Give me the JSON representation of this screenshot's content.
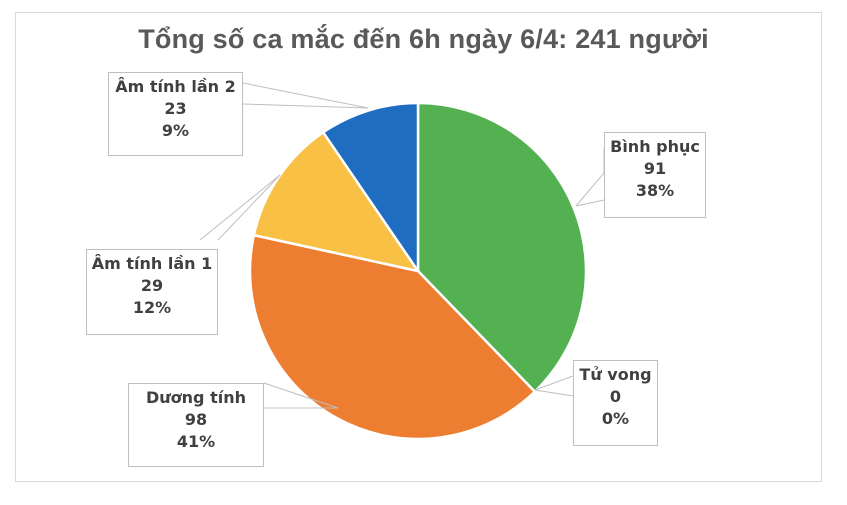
{
  "chart_data": {
    "type": "pie",
    "title": "Tổng số ca mắc đến 6h ngày 6/4: 241 người",
    "total": 241,
    "start_angle_deg": 0,
    "direction": "clockwise",
    "categories": [
      "Bình phục",
      "Tử vong",
      "Dương tính",
      "Âm tính lần 1",
      "Âm tính lần 2"
    ],
    "values": [
      91,
      0,
      98,
      29,
      23
    ],
    "percentages": [
      "38%",
      "0%",
      "41%",
      "12%",
      "9%"
    ],
    "colors": [
      "#53B152",
      "#4472C4",
      "#ED7D31",
      "#F8C045",
      "#1F6DC0"
    ],
    "data_labels_show": [
      "category",
      "value",
      "percent"
    ],
    "legend": "none"
  },
  "title": "Tổng số ca mắc đến 6h ngày 6/4: 241 người",
  "labels": {
    "binh_phuc": {
      "name": "Bình phục",
      "value": "91",
      "pct": "38%"
    },
    "tu_vong": {
      "name": "Tử vong",
      "value": "0",
      "pct": "0%"
    },
    "duong_tinh": {
      "name": "Dương tính",
      "value": "98",
      "pct": "41%"
    },
    "am_tinh_1": {
      "name": "Âm tính lần 1",
      "value": "29",
      "pct": "12%"
    },
    "am_tinh_2": {
      "name": "Âm tính lần 2",
      "value": "23",
      "pct": "9%"
    }
  },
  "style": {
    "title_color": "#595959",
    "label_color": "#404040",
    "leader_color": "#bfbfbf",
    "slice_border": "#ffffff"
  }
}
